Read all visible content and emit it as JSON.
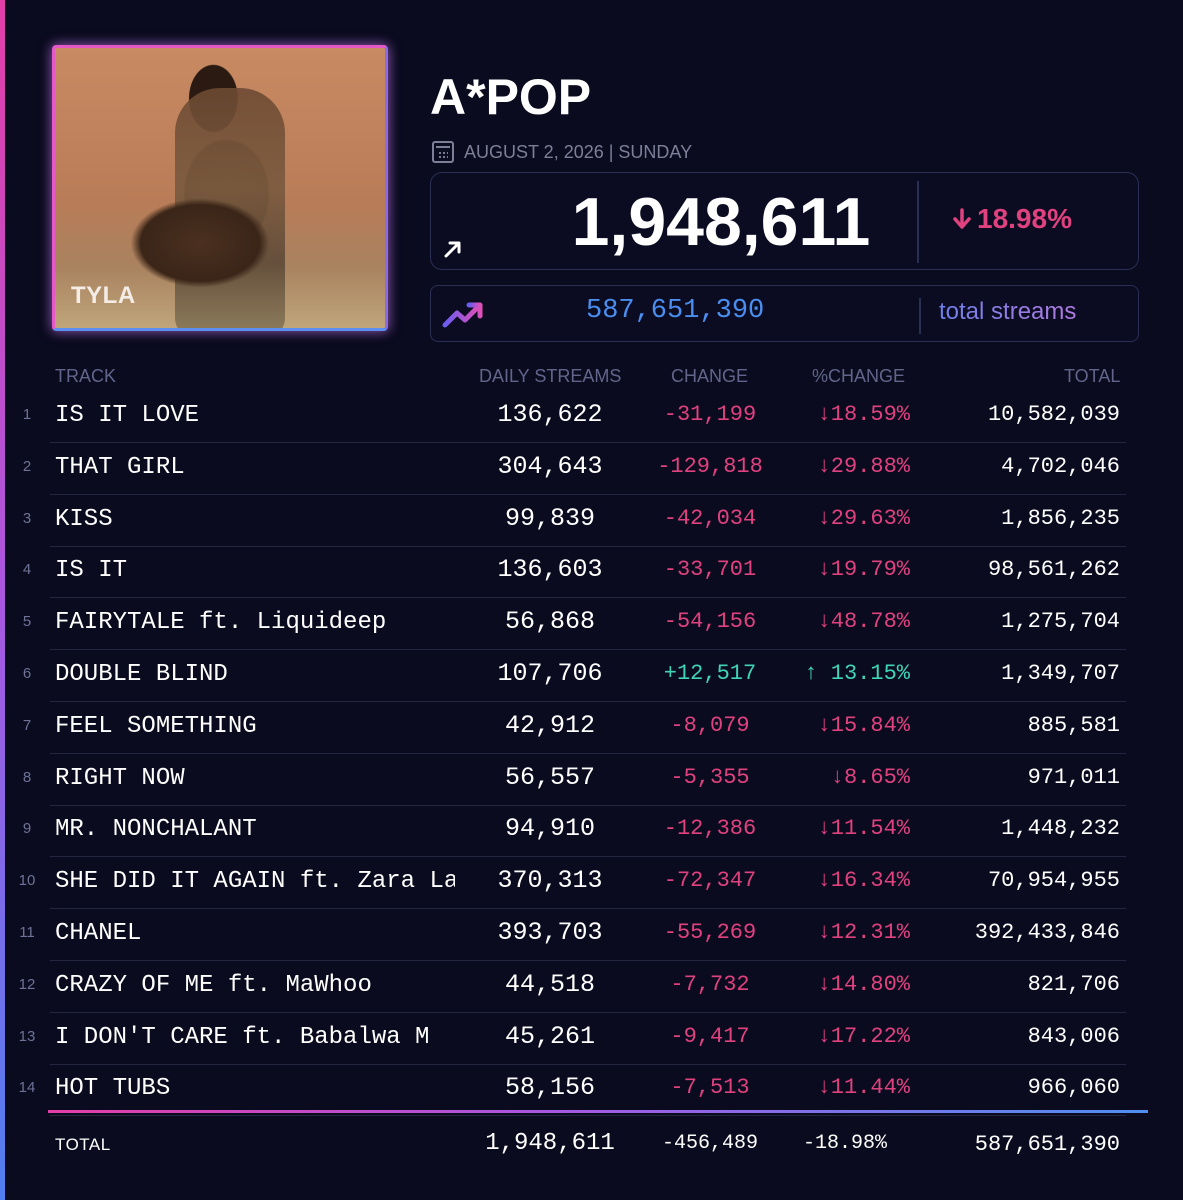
{
  "album": {
    "artist_label": "TYLA"
  },
  "header": {
    "title": "A*POP",
    "date": "AUGUST 2, 2026 | SUNDAY",
    "daily_total": "1,948,611",
    "daily_pct_change": "18.98%",
    "total_streams": "587,651,390",
    "total_streams_label": "total streams"
  },
  "colors": {
    "negative": "#e0417f",
    "positive": "#3fd5b6",
    "accent_pink": "#e23ea8",
    "accent_blue": "#4f8ff0"
  },
  "table": {
    "headers": {
      "track": "TRACK",
      "daily": "DAILY STREAMS",
      "change": "CHANGE",
      "pct_change": "%CHANGE",
      "total": "TOTAL"
    },
    "rows": [
      {
        "rank": "1",
        "track": "IS IT LOVE",
        "daily": "136,622",
        "change": "-31,199",
        "pct": "↓18.59%",
        "total": "10,582,039",
        "dir": "neg"
      },
      {
        "rank": "2",
        "track": "THAT GIRL",
        "daily": "304,643",
        "change": "-129,818",
        "pct": "↓29.88%",
        "total": "4,702,046",
        "dir": "neg"
      },
      {
        "rank": "3",
        "track": "KISS",
        "daily": "99,839",
        "change": "-42,034",
        "pct": "↓29.63%",
        "total": "1,856,235",
        "dir": "neg"
      },
      {
        "rank": "4",
        "track": "IS IT",
        "daily": "136,603",
        "change": "-33,701",
        "pct": "↓19.79%",
        "total": "98,561,262",
        "dir": "neg"
      },
      {
        "rank": "5",
        "track": "FAIRYTALE ft. Liquideep",
        "daily": "56,868",
        "change": "-54,156",
        "pct": "↓48.78%",
        "total": "1,275,704",
        "dir": "neg"
      },
      {
        "rank": "6",
        "track": "DOUBLE BLIND",
        "daily": "107,706",
        "change": "+12,517",
        "pct": "↑ 13.15%",
        "total": "1,349,707",
        "dir": "pos"
      },
      {
        "rank": "7",
        "track": "FEEL SOMETHING",
        "daily": "42,912",
        "change": "-8,079",
        "pct": "↓15.84%",
        "total": "885,581",
        "dir": "neg"
      },
      {
        "rank": "8",
        "track": "RIGHT NOW",
        "daily": "56,557",
        "change": "-5,355",
        "pct": "↓8.65%",
        "total": "971,011",
        "dir": "neg"
      },
      {
        "rank": "9",
        "track": "MR. NONCHALANT",
        "daily": "94,910",
        "change": "-12,386",
        "pct": "↓11.54%",
        "total": "1,448,232",
        "dir": "neg"
      },
      {
        "rank": "10",
        "track": "SHE DID IT AGAIN ft. Zara La",
        "daily": "370,313",
        "change": "-72,347",
        "pct": "↓16.34%",
        "total": "70,954,955",
        "dir": "neg"
      },
      {
        "rank": "11",
        "track": "CHANEL",
        "daily": "393,703",
        "change": "-55,269",
        "pct": "↓12.31%",
        "total": "392,433,846",
        "dir": "neg"
      },
      {
        "rank": "12",
        "track": "CRAZY OF ME ft. MaWhoo",
        "daily": "44,518",
        "change": "-7,732",
        "pct": "↓14.80%",
        "total": "821,706",
        "dir": "neg"
      },
      {
        "rank": "13",
        "track": "I DON'T CARE ft. Babalwa M",
        "daily": "45,261",
        "change": "-9,417",
        "pct": "↓17.22%",
        "total": "843,006",
        "dir": "neg"
      },
      {
        "rank": "14",
        "track": "HOT TUBS",
        "daily": "58,156",
        "change": "-7,513",
        "pct": "↓11.44%",
        "total": "966,060",
        "dir": "neg"
      }
    ],
    "totals": {
      "label": "TOTAL",
      "daily": "1,948,611",
      "change": "-456,489",
      "pct": "-18.98%",
      "total": "587,651,390"
    }
  }
}
